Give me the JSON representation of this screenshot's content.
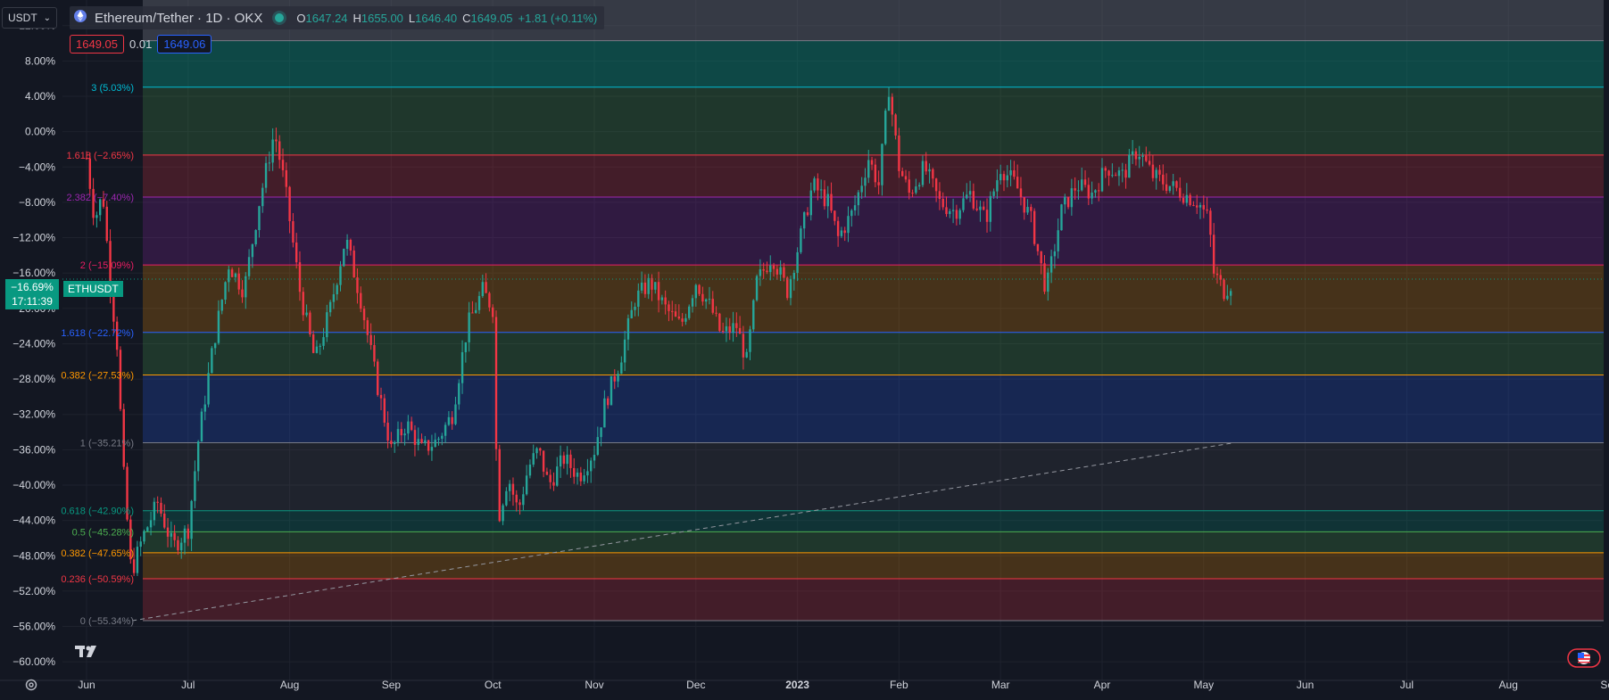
{
  "header": {
    "currency": "USDT",
    "symbol_title": "Ethereum/Tether · 1D · OKX",
    "ohlc": {
      "o_label": "O",
      "o": "1647.24",
      "h_label": "H",
      "h": "1655.00",
      "l_label": "L",
      "l": "1646.40",
      "c_label": "C",
      "c": "1649.05",
      "change": "+1.81 (+0.11%)"
    },
    "sell_price": "1649.05",
    "spread": "0.01",
    "buy_price": "1649.06"
  },
  "current": {
    "percent": "−16.69%",
    "countdown": "17:11:39",
    "symbol": "ETHUSDT",
    "value": -16.69
  },
  "colors": {
    "up": "#26a69a",
    "down": "#f23645",
    "background": "#131722"
  },
  "chart_data": {
    "type": "candlestick",
    "scale": "percent",
    "ylim": [
      -61,
      14
    ],
    "y_ticks": [
      "12.00%",
      "8.00%",
      "4.00%",
      "0.00%",
      "−4.00%",
      "−8.00%",
      "−12.00%",
      "−16.00%",
      "−20.00%",
      "−24.00%",
      "−28.00%",
      "−32.00%",
      "−36.00%",
      "−40.00%",
      "−44.00%",
      "−48.00%",
      "−52.00%",
      "−56.00%",
      "−60.00%"
    ],
    "y_tick_values": [
      12,
      8,
      4,
      0,
      -4,
      -8,
      -12,
      -16,
      -20,
      -24,
      -28,
      -32,
      -36,
      -40,
      -44,
      -48,
      -52,
      -56,
      -60
    ],
    "x_ticks": [
      "Jun",
      "Jul",
      "Aug",
      "Sep",
      "Oct",
      "Nov",
      "Dec",
      "2023",
      "Feb",
      "Mar",
      "Apr",
      "May",
      "Jun",
      "Jul",
      "Aug",
      "Sep"
    ],
    "x_tick_month_index": [
      0,
      1,
      2,
      3,
      4,
      5,
      6,
      7,
      8,
      9,
      10,
      11,
      12,
      13,
      14,
      15
    ],
    "price_path": [
      [
        0.0,
        -3
      ],
      [
        0.08,
        -10
      ],
      [
        0.16,
        -7
      ],
      [
        0.24,
        -18
      ],
      [
        0.3,
        -24
      ],
      [
        0.36,
        -38
      ],
      [
        0.44,
        -50
      ],
      [
        0.55,
        -46
      ],
      [
        0.7,
        -42
      ],
      [
        0.85,
        -47
      ],
      [
        1.0,
        -45
      ],
      [
        1.1,
        -35
      ],
      [
        1.25,
        -24
      ],
      [
        1.4,
        -15
      ],
      [
        1.55,
        -18
      ],
      [
        1.7,
        -8
      ],
      [
        1.85,
        0
      ],
      [
        1.95,
        -6
      ],
      [
        2.1,
        -18
      ],
      [
        2.25,
        -26
      ],
      [
        2.4,
        -20
      ],
      [
        2.55,
        -12
      ],
      [
        2.7,
        -19
      ],
      [
        2.85,
        -28
      ],
      [
        3.0,
        -36
      ],
      [
        3.15,
        -33
      ],
      [
        3.3,
        -36
      ],
      [
        3.45,
        -35
      ],
      [
        3.6,
        -32
      ],
      [
        3.75,
        -22
      ],
      [
        3.9,
        -18
      ],
      [
        4.0,
        -20
      ],
      [
        4.05,
        -44
      ],
      [
        4.15,
        -39
      ],
      [
        4.25,
        -43
      ],
      [
        4.35,
        -38
      ],
      [
        4.45,
        -36
      ],
      [
        4.55,
        -40
      ],
      [
        4.7,
        -37
      ],
      [
        4.85,
        -39
      ],
      [
        5.0,
        -36
      ],
      [
        5.1,
        -31
      ],
      [
        5.25,
        -26
      ],
      [
        5.4,
        -19
      ],
      [
        5.55,
        -17
      ],
      [
        5.7,
        -20
      ],
      [
        5.85,
        -22
      ],
      [
        6.0,
        -17
      ],
      [
        6.15,
        -20
      ],
      [
        6.25,
        -23
      ],
      [
        6.4,
        -22
      ],
      [
        6.5,
        -26
      ],
      [
        6.6,
        -17
      ],
      [
        6.75,
        -14
      ],
      [
        6.9,
        -18
      ],
      [
        7.05,
        -11
      ],
      [
        7.15,
        -6
      ],
      [
        7.3,
        -8
      ],
      [
        7.4,
        -12
      ],
      [
        7.55,
        -9
      ],
      [
        7.7,
        -3
      ],
      [
        7.8,
        -6
      ],
      [
        7.9,
        5
      ],
      [
        8.0,
        -4
      ],
      [
        8.1,
        -7
      ],
      [
        8.25,
        -4
      ],
      [
        8.4,
        -8
      ],
      [
        8.55,
        -9
      ],
      [
        8.7,
        -7
      ],
      [
        8.85,
        -10
      ],
      [
        9.0,
        -4
      ],
      [
        9.15,
        -6
      ],
      [
        9.3,
        -10
      ],
      [
        9.45,
        -18
      ],
      [
        9.6,
        -9
      ],
      [
        9.75,
        -6
      ],
      [
        9.9,
        -7
      ],
      [
        10.05,
        -4
      ],
      [
        10.2,
        -5
      ],
      [
        10.35,
        -2
      ],
      [
        10.5,
        -5
      ],
      [
        10.65,
        -6
      ],
      [
        10.8,
        -7
      ],
      [
        10.95,
        -8
      ],
      [
        11.05,
        -10
      ],
      [
        11.1,
        -16
      ],
      [
        11.2,
        -18
      ],
      [
        11.28,
        -17
      ]
    ],
    "fib_retracement_upper": [
      {
        "label": "3 (5.03%)",
        "value": 5.03,
        "color": "#00bcd4"
      },
      {
        "label": "1.618 (−2.65%)",
        "value": -2.65,
        "color": "#f23645"
      },
      {
        "label": "2.382 (−7.40%)",
        "value": -7.4,
        "color": "#9c27b0"
      },
      {
        "label": "2 (−15.09%)",
        "value": -15.09,
        "color": "#e91e63"
      },
      {
        "label": "1.618 (−22.72%)",
        "value": -22.72,
        "color": "#2962ff"
      },
      {
        "label": "0.382 (−27.53%)",
        "value": -27.53,
        "color": "#ff9800"
      },
      {
        "label": "1 (−35.21%)",
        "value": -35.21,
        "color": "#787b86"
      }
    ],
    "fib_retracement_lower": [
      {
        "label": "0.618 (−42.90%)",
        "value": -42.9,
        "color": "#089981"
      },
      {
        "label": "0.5 (−45.28%)",
        "value": -45.28,
        "color": "#4caf50"
      },
      {
        "label": "0.382 (−47.65%)",
        "value": -47.65,
        "color": "#ff9800"
      },
      {
        "label": "0.236 (−50.59%)",
        "value": -50.59,
        "color": "#f23645"
      },
      {
        "label": "0 (−55.34%)",
        "value": -55.34,
        "color": "#787b86"
      }
    ],
    "trend_line": {
      "x": [
        0.45,
        11.3
      ],
      "y": [
        -55.34,
        -35.21
      ],
      "style": "dashed"
    }
  }
}
